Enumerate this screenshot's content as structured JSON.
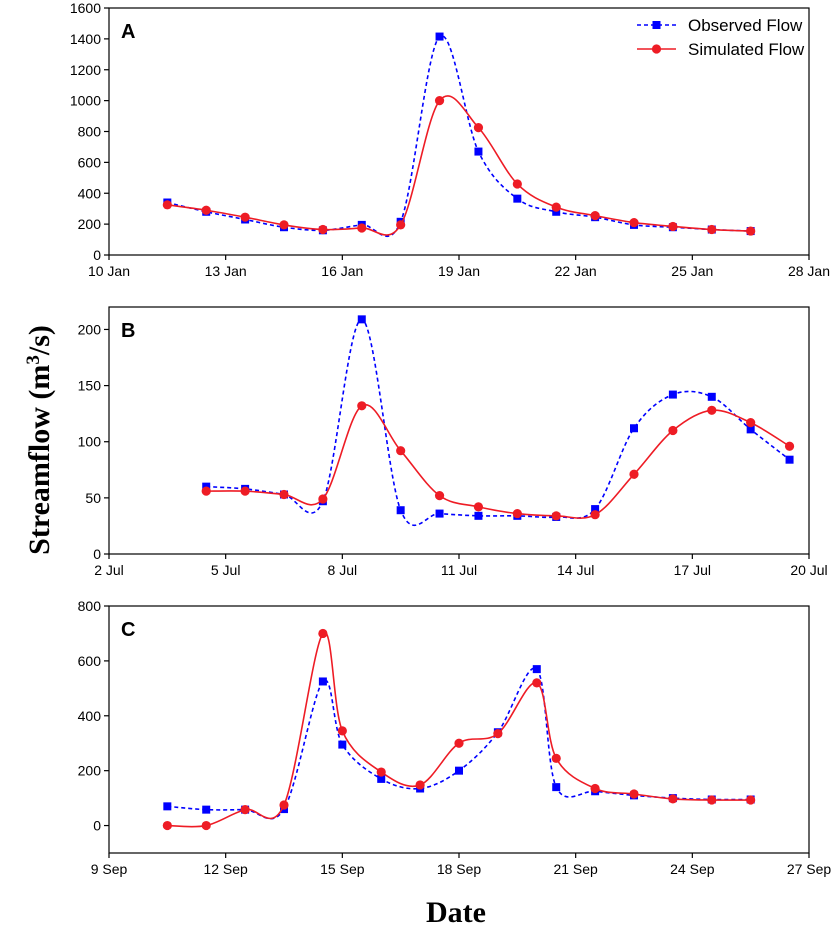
{
  "chart_data": [
    {
      "type": "line",
      "panel_label": "A",
      "x_unit": "day",
      "xlim": [
        0,
        18
      ],
      "ylim": [
        0,
        1600
      ],
      "x_ticks": [
        0,
        3,
        6,
        9,
        12,
        15,
        18
      ],
      "x_tick_labels": [
        "10 Jan",
        "13 Jan",
        "16 Jan",
        "19 Jan",
        "22 Jan",
        "25 Jan",
        "28 Jan"
      ],
      "y_ticks": [
        0,
        200,
        400,
        600,
        800,
        1000,
        1200,
        1400,
        1600
      ],
      "y_tick_labels": [
        "0",
        "200",
        "400",
        "600",
        "800",
        "1000",
        "1200",
        "1400",
        "1600"
      ],
      "legend": {
        "position": "top-right",
        "entries": [
          "Observed Flow",
          "Simulated Flow"
        ]
      },
      "series": [
        {
          "name": "Observed Flow",
          "x": [
            1.5,
            2.5,
            3.5,
            4.5,
            5.5,
            6.5,
            7.5,
            8.5,
            9.5,
            10.5,
            11.5,
            12.5,
            13.5,
            14.5,
            15.5,
            16.5
          ],
          "values": [
            340,
            280,
            230,
            180,
            160,
            195,
            215,
            1415,
            670,
            365,
            280,
            245,
            195,
            180,
            165,
            155
          ]
        },
        {
          "name": "Simulated Flow",
          "x": [
            1.5,
            2.5,
            3.5,
            4.5,
            5.5,
            6.5,
            7.5,
            8.5,
            9.5,
            10.5,
            11.5,
            12.5,
            13.5,
            14.5,
            15.5,
            16.5
          ],
          "values": [
            325,
            290,
            245,
            195,
            165,
            175,
            195,
            1000,
            825,
            460,
            310,
            255,
            210,
            185,
            165,
            155
          ]
        }
      ]
    },
    {
      "type": "line",
      "panel_label": "B",
      "x_unit": "day",
      "xlim": [
        0,
        18
      ],
      "ylim": [
        0,
        220
      ],
      "x_ticks": [
        0,
        3,
        6,
        9,
        12,
        15,
        18
      ],
      "x_tick_labels": [
        "2 Jul",
        "5 Jul",
        "8 Jul",
        "11 Jul",
        "14 Jul",
        "17 Jul",
        "20 Jul"
      ],
      "y_ticks": [
        0,
        50,
        100,
        150,
        200
      ],
      "y_tick_labels": [
        "0",
        "50",
        "100",
        "150",
        "200"
      ],
      "series": [
        {
          "name": "Observed Flow",
          "x": [
            2.5,
            3.5,
            4.5,
            5.5,
            6.5,
            7.5,
            8.5,
            9.5,
            10.5,
            11.5,
            12.5,
            13.5,
            14.5,
            15.5,
            16.5,
            17.5
          ],
          "values": [
            60,
            58,
            53,
            47,
            209,
            39,
            36,
            34,
            34,
            33,
            40,
            112,
            142,
            140,
            111,
            84
          ]
        },
        {
          "name": "Simulated Flow",
          "x": [
            2.5,
            3.5,
            4.5,
            5.5,
            6.5,
            7.5,
            8.5,
            9.5,
            10.5,
            11.5,
            12.5,
            13.5,
            14.5,
            15.5,
            16.5,
            17.5
          ],
          "values": [
            56,
            56,
            53,
            49,
            132,
            92,
            52,
            42,
            36,
            34,
            35,
            71,
            110,
            128,
            117,
            96
          ]
        }
      ]
    },
    {
      "type": "line",
      "panel_label": "C",
      "x_unit": "day",
      "xlim": [
        0,
        18
      ],
      "ylim": [
        -100,
        800
      ],
      "x_ticks": [
        0,
        3,
        6,
        9,
        12,
        15,
        18
      ],
      "x_tick_labels": [
        "9 Sep",
        "12 Sep",
        "15 Sep",
        "18 Sep",
        "21 Sep",
        "24 Sep",
        "27 Sep"
      ],
      "y_ticks": [
        0,
        200,
        400,
        600,
        800
      ],
      "y_tick_labels": [
        "0",
        "200",
        "400",
        "600",
        "800"
      ],
      "series": [
        {
          "name": "Observed Flow",
          "x": [
            1.5,
            2.5,
            3.5,
            4.5,
            5.5,
            6.0,
            7.0,
            8.0,
            9.0,
            10.0,
            11.0,
            11.5,
            12.5,
            13.5,
            14.5,
            15.5,
            16.5
          ],
          "values": [
            70,
            58,
            58,
            60,
            525,
            295,
            170,
            135,
            200,
            340,
            570,
            140,
            125,
            110,
            100,
            95,
            95
          ]
        },
        {
          "name": "Simulated Flow",
          "x": [
            1.5,
            2.5,
            3.5,
            4.5,
            5.5,
            6.0,
            7.0,
            8.0,
            9.0,
            10.0,
            11.0,
            11.5,
            12.5,
            13.5,
            14.5,
            15.5,
            16.5
          ],
          "values": [
            0,
            0,
            58,
            75,
            700,
            345,
            195,
            148,
            300,
            335,
            520,
            245,
            135,
            115,
            97,
            93,
            93
          ]
        }
      ]
    }
  ],
  "axis_titles": {
    "y_main": "Streamflow (m",
    "y_sup": "3",
    "y_end": "/s)",
    "x": "Date"
  },
  "colors": {
    "observed": "#0000ff",
    "simulated": "#ee1c25",
    "axis": "#000000"
  }
}
